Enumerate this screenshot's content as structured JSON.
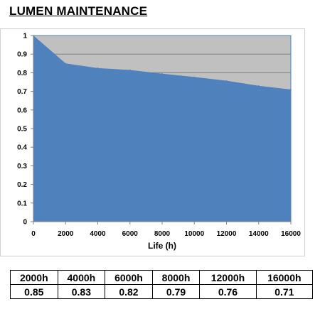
{
  "title": "LUMEN MAINTENANCE",
  "chart_data": {
    "type": "area",
    "x": [
      0,
      2000,
      4000,
      6000,
      8000,
      10000,
      12000,
      14000,
      16000
    ],
    "series": [
      {
        "values": [
          1,
          0.85,
          0.825,
          0.815,
          0.795,
          0.777,
          0.757,
          0.73,
          0.71
        ]
      }
    ],
    "xlabel": "Life (h)",
    "ylabel": "",
    "xlim": [
      0,
      16000
    ],
    "ylim": [
      0,
      1
    ],
    "xticks": [
      "0",
      "2000",
      "4000",
      "6000",
      "8000",
      "10000",
      "12000",
      "14000",
      "16000"
    ],
    "yticks": [
      "0",
      "0.1",
      "0.2",
      "0.3",
      "0.4",
      "0.5",
      "0.6",
      "0.7",
      "0.8",
      "0.9",
      "1"
    ],
    "grid": true,
    "colors": {
      "fill": "#4f81bd",
      "plot_background": "#c0c0c0",
      "gridline": "#808080"
    }
  },
  "table": {
    "headers": [
      "2000h",
      "4000h",
      "6000h",
      "8000h",
      "12000h",
      "16000h"
    ],
    "values": [
      "0.85",
      "0.83",
      "0.82",
      "0.79",
      "0.76",
      "0.71"
    ]
  }
}
